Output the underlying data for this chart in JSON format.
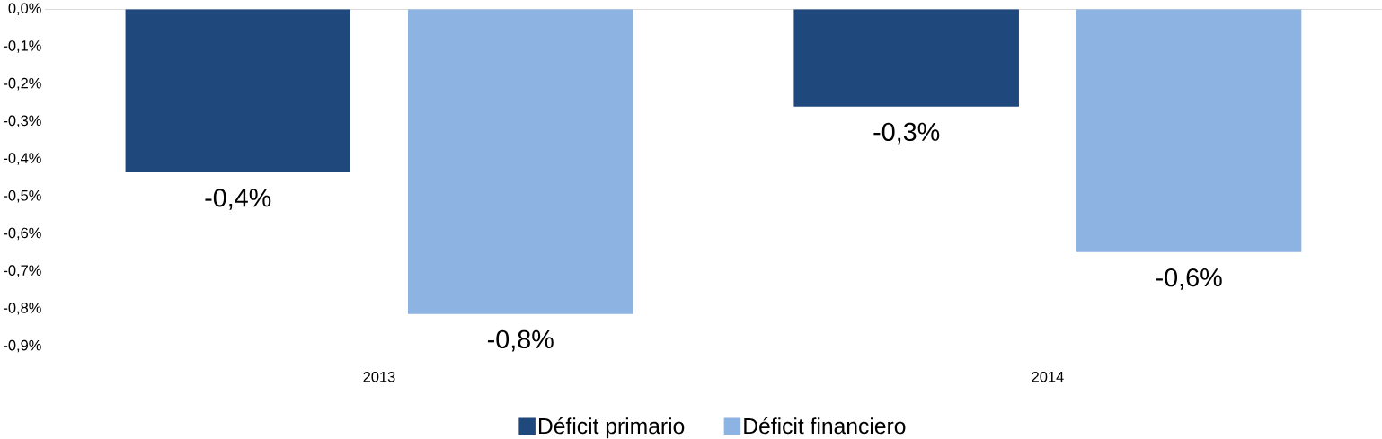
{
  "chart_data": {
    "type": "bar",
    "categories": [
      "2013",
      "2014"
    ],
    "series": [
      {
        "name": "Déficit primario",
        "color": "#1f497d",
        "values": [
          -0.436,
          -0.26
        ],
        "value_labels": [
          "-0,4%",
          "-0,3%"
        ]
      },
      {
        "name": "Déficit financiero",
        "color": "#8db3e2",
        "values": [
          -0.814,
          -0.649
        ],
        "value_labels": [
          "-0,8%",
          "-0,6%"
        ]
      }
    ],
    "ylim": [
      -0.9,
      0
    ],
    "yticks": [
      {
        "value": 0,
        "label": "0,0%"
      },
      {
        "value": -0.1,
        "label": "-0,1%"
      },
      {
        "value": -0.2,
        "label": "-0,2%"
      },
      {
        "value": -0.3,
        "label": "-0,3%"
      },
      {
        "value": -0.4,
        "label": "-0,4%"
      },
      {
        "value": -0.5,
        "label": "-0,5%"
      },
      {
        "value": -0.6,
        "label": "-0,6%"
      },
      {
        "value": -0.7,
        "label": "-0,7%"
      },
      {
        "value": -0.8,
        "label": "-0,8%"
      },
      {
        "value": -0.9,
        "label": "-0,9%"
      }
    ],
    "grid": false,
    "legend": "bottom"
  }
}
